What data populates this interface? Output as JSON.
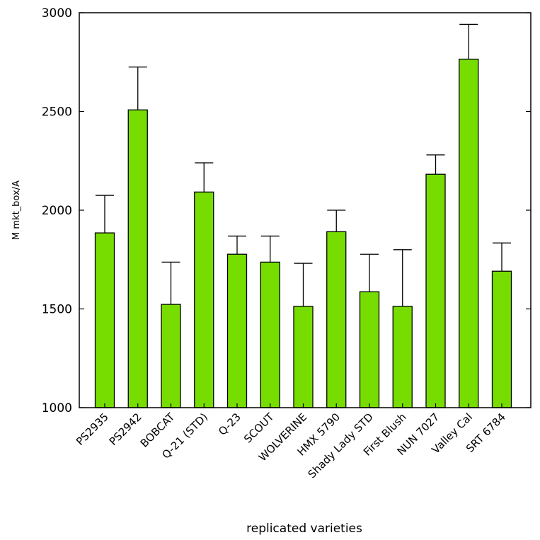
{
  "chart_data": {
    "type": "bar",
    "title": "",
    "xlabel": "replicated varieties",
    "ylabel": "M mkt_box/A",
    "ylim": [
      1000,
      3000
    ],
    "yticks": [
      1000,
      1500,
      2000,
      2500,
      3000
    ],
    "grid": false,
    "legend": "none",
    "bar_color": "#77dd00",
    "bar_edge_color": "#000000",
    "categories": [
      "PS2935",
      "PS2942",
      "BOBCAT",
      "Q-21 (STD)",
      "Q-23",
      "SCOUT",
      "WOLVERINE",
      "HMX 5790",
      "Shady Lady STD",
      "First Blush",
      "NUN 7027",
      "Valley Cal",
      "SRT 6784"
    ],
    "values": [
      1885,
      2508,
      1523,
      2092,
      1777,
      1737,
      1513,
      1891,
      1587,
      1513,
      2182,
      2765,
      1691
    ],
    "error_upper": [
      2075,
      2725,
      1737,
      2240,
      1869,
      1869,
      1731,
      2000,
      1777,
      1800,
      2280,
      2941,
      1834
    ]
  }
}
